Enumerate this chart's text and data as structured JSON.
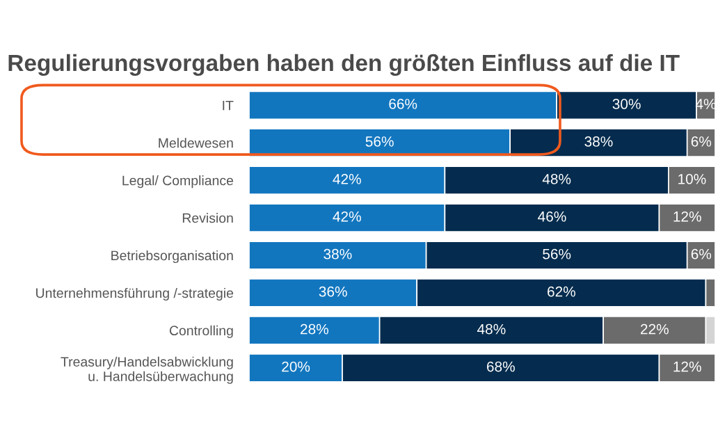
{
  "chart_data": {
    "type": "bar",
    "orientation": "horizontal",
    "stacked": true,
    "title": "Regulierungsvorgaben haben den größten Einfluss auf die IT",
    "categories": [
      "IT",
      "Meldewesen",
      "Legal/ Compliance",
      "Revision",
      "Betriebsorganisation",
      "Unternehmensführung /-strategie",
      "Controlling",
      "Treasury/Handelsabwicklung\nu. Handelsüberwachung"
    ],
    "series": [
      {
        "color": "#1276bf",
        "values": [
          66,
          56,
          42,
          42,
          38,
          36,
          28,
          20
        ],
        "value_labels": [
          "66%",
          "56%",
          "42%",
          "42%",
          "38%",
          "36%",
          "28%",
          "20%"
        ]
      },
      {
        "color": "#052c4e",
        "values": [
          30,
          38,
          48,
          46,
          56,
          62,
          48,
          68
        ],
        "value_labels": [
          "30%",
          "38%",
          "48%",
          "46%",
          "56%",
          "62%",
          "48%",
          "68%"
        ]
      },
      {
        "color": "#6b6b6b",
        "values": [
          4,
          6,
          10,
          12,
          6,
          2,
          22,
          12
        ],
        "value_labels": [
          "4%",
          "6%",
          "10%",
          "12%",
          "6%",
          null,
          "22%",
          "12%"
        ]
      },
      {
        "color": "#d4d4d4",
        "values": [
          null,
          null,
          null,
          null,
          null,
          null,
          2,
          null
        ],
        "value_labels": [
          null,
          null,
          null,
          null,
          null,
          null,
          null,
          null
        ]
      }
    ],
    "legend": false
  }
}
